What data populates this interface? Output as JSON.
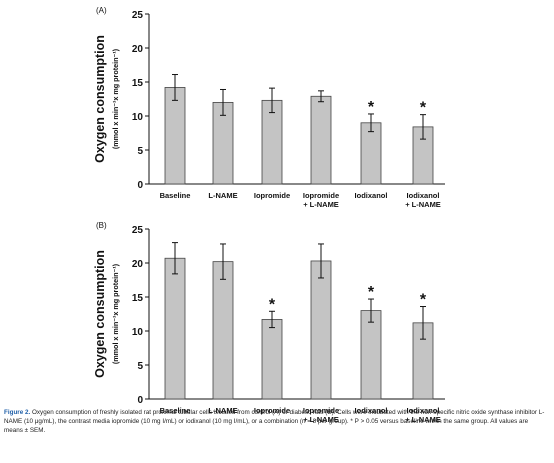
{
  "chart_data": [
    {
      "type": "bar",
      "panel_label": "(A)",
      "categories": [
        "Baseline",
        "L-NAME",
        "Iopromide",
        "Iopromide\n+ L-NAME",
        "Iodixanol",
        "Iodixanol\n+ L-NAME"
      ],
      "values": [
        14.2,
        12.0,
        12.3,
        12.9,
        9.0,
        8.4
      ],
      "errors": [
        1.9,
        1.9,
        1.8,
        0.8,
        1.3,
        1.8
      ],
      "significant": [
        false,
        false,
        false,
        false,
        true,
        true
      ],
      "ylabel": "Oxygen consumption",
      "ylabel_units": "(mmol x min⁻¹x mg protein⁻¹)",
      "ylim": [
        0,
        25
      ],
      "yticks": [
        0,
        5,
        10,
        15,
        20,
        25
      ],
      "grid": false,
      "bar_color": "#c4c4c4"
    },
    {
      "type": "bar",
      "panel_label": "(B)",
      "categories": [
        "Baseline",
        "L-NAME",
        "Iopromide",
        "Iopromide\n+ L-NAME",
        "Iodixanol",
        "Iodixanol\n+ L-NAME"
      ],
      "values": [
        20.7,
        20.2,
        11.7,
        20.3,
        13.0,
        11.2
      ],
      "errors": [
        2.3,
        2.6,
        1.2,
        2.5,
        1.7,
        2.4
      ],
      "significant": [
        false,
        false,
        true,
        false,
        true,
        true
      ],
      "ylabel": "Oxygen consumption",
      "ylabel_units": "(mmol x min⁻¹x mg protein⁻¹)",
      "ylim": [
        0,
        25
      ],
      "yticks": [
        0,
        5,
        10,
        15,
        20,
        25
      ],
      "grid": false,
      "bar_color": "#c4c4c4"
    }
  ],
  "significance_marker": "*",
  "caption": {
    "label": "Figure 2.",
    "text": "Oxygen consumption of freshly isolated rat proximal tubular cells isolated from control (A) or diabetic rats (B). Cells were incubated with the non-specific nitric oxide synthase inhibitor L-NAME (10 μg/mL), the contrast media iopromide (10 mg I/mL) or iodixanol (10 mg I/mL), or a combination (n = 8 per group). * P > 0.05 versus baseline within the same group. All values are means ± SEM."
  }
}
